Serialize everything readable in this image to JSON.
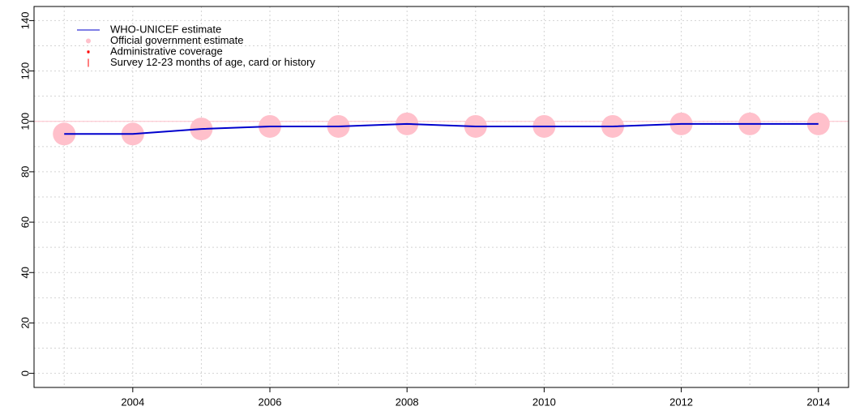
{
  "chart_data": {
    "type": "line",
    "x": [
      2003,
      2004,
      2005,
      2006,
      2007,
      2008,
      2009,
      2010,
      2011,
      2012,
      2013,
      2014
    ],
    "series": [
      {
        "name": "WHO-UNICEF estimate",
        "color": "#0000cd",
        "marker": "line",
        "values": [
          95,
          95,
          97,
          98,
          98,
          99,
          98,
          98,
          98,
          99,
          99,
          99
        ]
      },
      {
        "name": "Official government estimate",
        "color": "#ffc0cb",
        "marker": "circle",
        "values": [
          95,
          95,
          97,
          98,
          98,
          99,
          98,
          98,
          98,
          99,
          99,
          99
        ]
      },
      {
        "name": "Administrative coverage",
        "color": "#ff0000",
        "marker": "star",
        "values": [
          null,
          null,
          null,
          null,
          null,
          null,
          null,
          null,
          null,
          null,
          null,
          null
        ]
      },
      {
        "name": "Survey 12-23 months of age, card or history",
        "color": "#ff0000",
        "marker": "bar",
        "values": [
          null,
          null,
          null,
          null,
          null,
          null,
          null,
          null,
          null,
          null,
          null,
          null
        ]
      }
    ],
    "xlim": [
      2002.56,
      2014.44
    ],
    "ylim": [
      -5.6,
      145.6
    ],
    "xticks": [
      2004,
      2006,
      2008,
      2010,
      2012,
      2014
    ],
    "yticks": [
      0,
      20,
      40,
      60,
      80,
      100,
      120,
      140
    ],
    "xgrid": [
      2003,
      2004,
      2005,
      2006,
      2007,
      2008,
      2009,
      2010,
      2011,
      2012,
      2013,
      2014
    ],
    "ygrid": [
      0,
      10,
      20,
      30,
      40,
      50,
      60,
      70,
      80,
      90,
      100,
      110,
      120,
      130,
      140
    ],
    "reference_line": {
      "value": 100,
      "color": "#ffc0cb"
    },
    "grid": true,
    "legend": "top-left"
  }
}
